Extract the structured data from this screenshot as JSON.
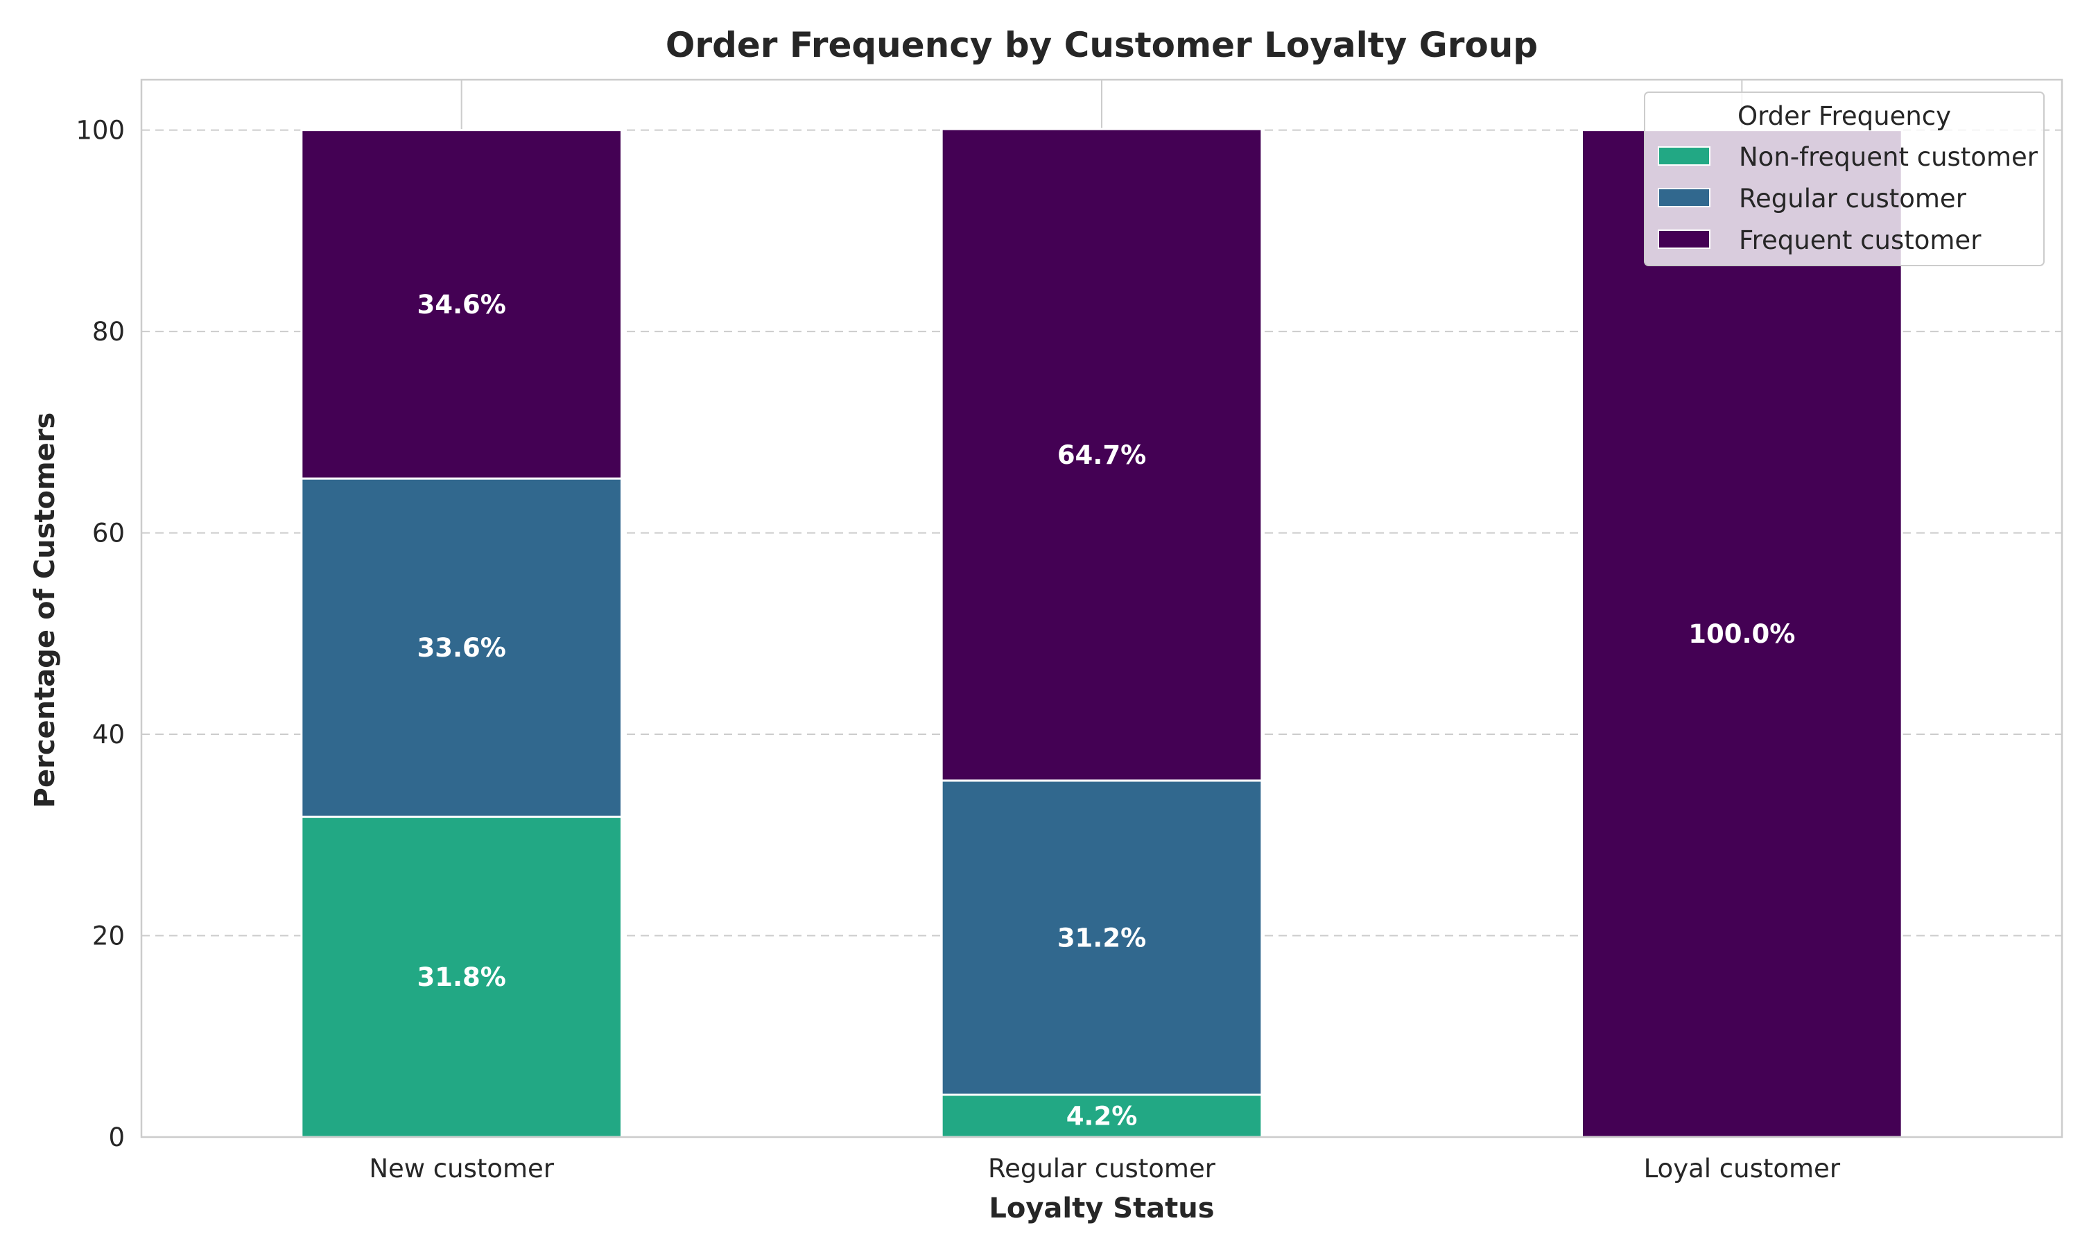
{
  "chart_data": {
    "type": "bar",
    "stacked": true,
    "title": "Order Frequency by Customer Loyalty Group",
    "xlabel": "Loyalty Status",
    "ylabel": "Percentage of Customers",
    "ylim": [
      0,
      105
    ],
    "yticks": [
      0,
      20,
      40,
      60,
      80,
      100
    ],
    "grid": true,
    "legend_position": "top-right",
    "legend_title": "Order Frequency",
    "categories": [
      "New customer",
      "Regular customer",
      "Loyal customer"
    ],
    "series": [
      {
        "name": "Non-frequent customer",
        "color": "#22a884",
        "values": [
          31.8,
          4.2,
          0.0
        ]
      },
      {
        "name": "Regular customer",
        "color": "#31688e",
        "values": [
          33.6,
          31.2,
          0.0
        ]
      },
      {
        "name": "Frequent customer",
        "color": "#440154",
        "values": [
          34.6,
          64.7,
          100.0
        ]
      }
    ]
  }
}
